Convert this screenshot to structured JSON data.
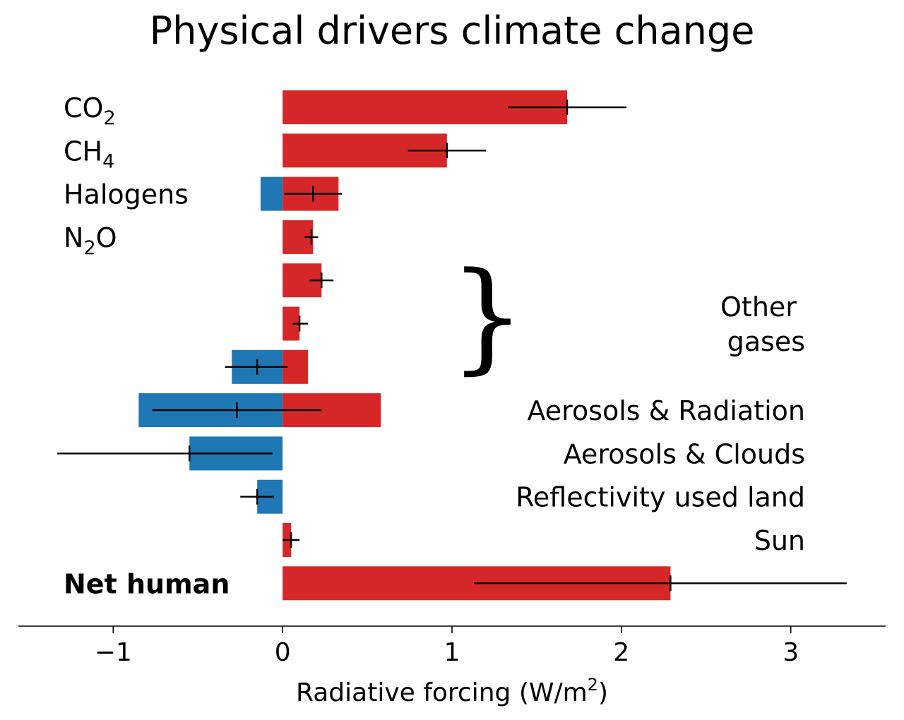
{
  "chart_data": {
    "type": "bar",
    "orientation": "horizontal",
    "title": "Physical drivers climate change",
    "xlabel": {
      "main": "Radiative forcing (W/m",
      "sup": "2",
      "tail": ")"
    },
    "xlim": [
      -1.56,
      3.56
    ],
    "xticks": [
      -1,
      0,
      1,
      2,
      3
    ],
    "xtick_labels": [
      "−1",
      "0",
      "1",
      "2",
      "3"
    ],
    "colors": {
      "positive": "#d62728",
      "negative": "#1f77b4",
      "errorbar": "#000000"
    },
    "rows": [
      {
        "label": "CO",
        "sub": "2",
        "pos": 1.68,
        "neg": 0,
        "center": 1.68,
        "err_low": 1.33,
        "err_high": 2.03
      },
      {
        "label": "CH",
        "sub": "4",
        "pos": 0.97,
        "neg": 0,
        "center": 0.97,
        "err_low": 0.74,
        "err_high": 1.2
      },
      {
        "label": "Halogens",
        "pos": 0.33,
        "neg": -0.13,
        "center": 0.18,
        "err_low": 0.01,
        "err_high": 0.35
      },
      {
        "label": "N",
        "sub": "2",
        "tail": "O",
        "pos": 0.18,
        "neg": 0,
        "center": 0.17,
        "err_low": 0.13,
        "err_high": 0.21
      },
      {
        "label": "",
        "pos": 0.23,
        "neg": 0,
        "center": 0.23,
        "err_low": 0.16,
        "err_high": 0.3
      },
      {
        "label": "",
        "pos": 0.1,
        "neg": 0,
        "center": 0.1,
        "err_low": 0.06,
        "err_high": 0.15
      },
      {
        "label": "",
        "pos": 0.15,
        "neg": -0.3,
        "center": -0.15,
        "err_low": -0.34,
        "err_high": 0.03
      },
      {
        "label": "",
        "pos": 0.58,
        "neg": -0.85,
        "center": -0.27,
        "err_low": -0.77,
        "err_high": 0.23
      },
      {
        "label": "",
        "pos": 0,
        "neg": -0.55,
        "center": -0.55,
        "err_low": -1.33,
        "err_high": -0.06
      },
      {
        "label": "",
        "pos": 0,
        "neg": -0.15,
        "center": -0.15,
        "err_low": -0.25,
        "err_high": -0.05
      },
      {
        "label": "",
        "pos": 0.05,
        "neg": 0,
        "center": 0.05,
        "err_low": 0.0,
        "err_high": 0.1
      },
      {
        "label": "Net human",
        "bold": true,
        "pos": 2.29,
        "neg": 0,
        "center": 2.29,
        "err_low": 1.13,
        "err_high": 3.33
      }
    ],
    "right_labels": [
      {
        "text": "Other ",
        "row": 4.6
      },
      {
        "text": "gases",
        "row": 5.4
      },
      {
        "text": "Aerosols & Radiation",
        "row": 7
      },
      {
        "text": "Aerosols & Clouds",
        "row": 8
      },
      {
        "text": "Reflectivity used land",
        "row": 9
      },
      {
        "text": "Sun",
        "row": 10
      }
    ],
    "brace": {
      "glyph": "}",
      "rows": [
        4,
        6
      ]
    },
    "grid": false,
    "legend": "none"
  }
}
